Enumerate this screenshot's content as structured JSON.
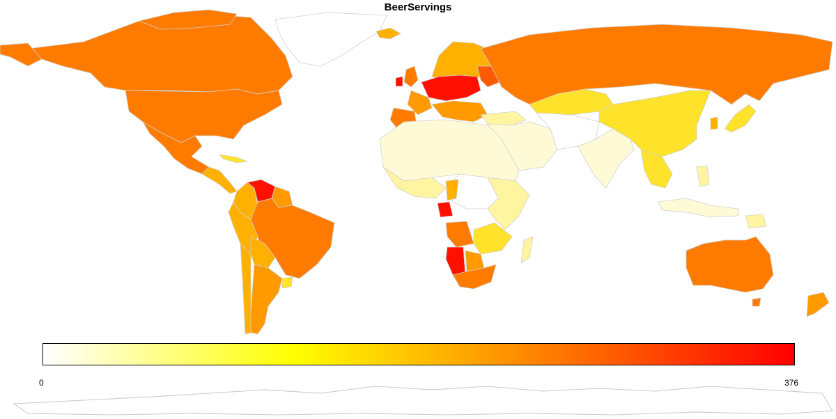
{
  "map": {
    "title": "BeerServings",
    "variable": "beer_servings",
    "projection": "equirectangular",
    "color_scale": {
      "type": "continuous",
      "min": 0,
      "max": 376,
      "min_label": "0",
      "max_label": "376",
      "stops": [
        "#ffffff",
        "#ffff00",
        "#ff7f00",
        "#ff0000"
      ]
    },
    "country_color_levels": {
      "none": "#ffffff",
      "very_low": "#fffad6",
      "low": "#fff4a0",
      "low_mid": "#ffe22a",
      "mid": "#ffb000",
      "mid_high": "#ff9a00",
      "high": "#ff7b00",
      "very_high": "#ff5a00",
      "max": "#ff1000"
    }
  }
}
